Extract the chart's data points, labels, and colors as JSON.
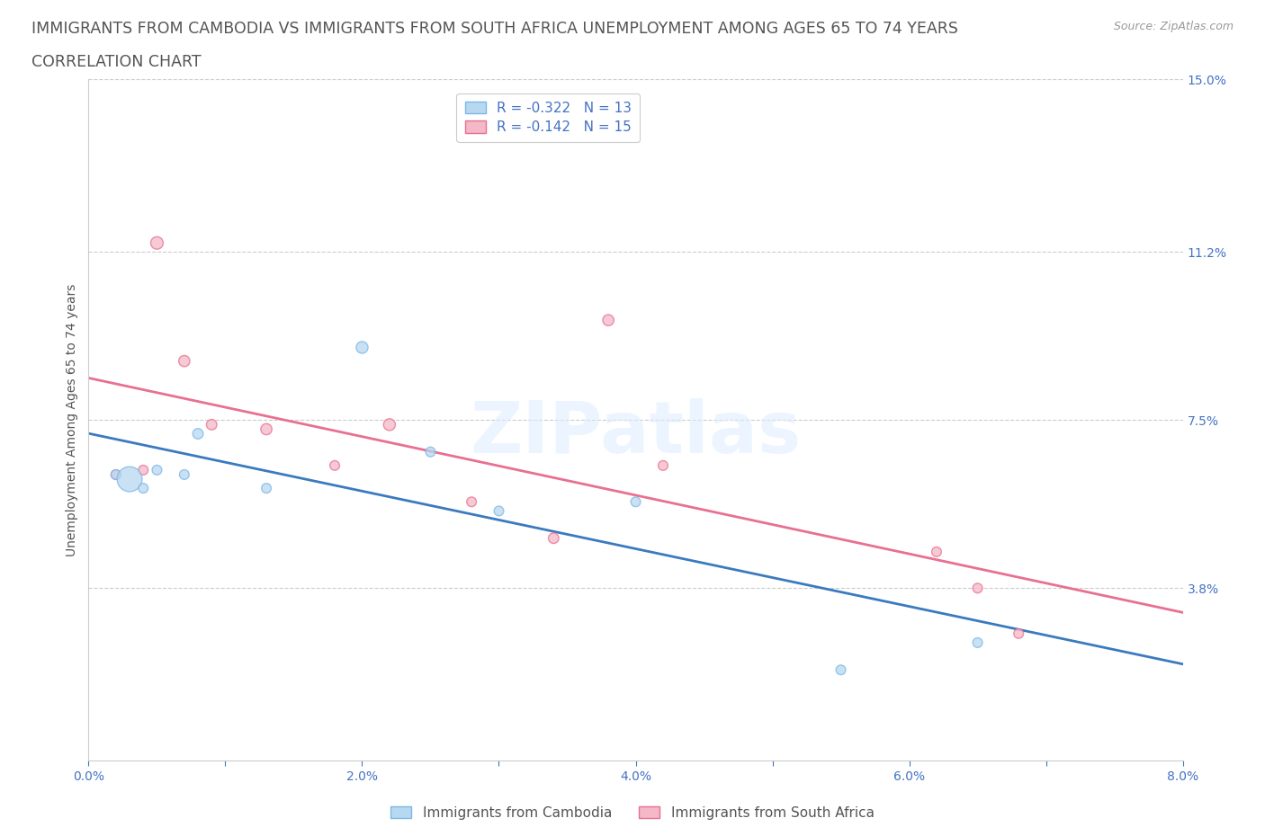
{
  "title_line1": "IMMIGRANTS FROM CAMBODIA VS IMMIGRANTS FROM SOUTH AFRICA UNEMPLOYMENT AMONG AGES 65 TO 74 YEARS",
  "title_line2": "CORRELATION CHART",
  "source": "Source: ZipAtlas.com",
  "ylabel": "Unemployment Among Ages 65 to 74 years",
  "xlim": [
    0.0,
    0.08
  ],
  "ylim": [
    0.0,
    0.15
  ],
  "xticks": [
    0.0,
    0.01,
    0.02,
    0.03,
    0.04,
    0.05,
    0.06,
    0.07,
    0.08
  ],
  "xticklabels": [
    "0.0%",
    "",
    "2.0%",
    "",
    "4.0%",
    "",
    "6.0%",
    "",
    "8.0%"
  ],
  "ytick_labels_right": [
    "15.0%",
    "11.2%",
    "7.5%",
    "3.8%"
  ],
  "ytick_values_right": [
    0.15,
    0.112,
    0.075,
    0.038
  ],
  "grid_yvals": [
    0.15,
    0.112,
    0.075,
    0.038
  ],
  "grid_color": "#cccccc",
  "background_color": "#ffffff",
  "watermark": "ZIPatlas",
  "cambodia_color": "#7ab8e8",
  "cambodia_color_fill": "#b8d8f0",
  "south_africa_color_edge": "#e87090",
  "south_africa_color_fill": "#f4b8c8",
  "cambodia_R": -0.322,
  "cambodia_N": 13,
  "south_africa_R": -0.142,
  "south_africa_N": 15,
  "legend_label_cambodia": "Immigrants from Cambodia",
  "legend_label_south_africa": "Immigrants from South Africa",
  "trend_color_cambodia": "#3a7abf",
  "trend_color_south_africa": "#e87090",
  "cambodia_x": [
    0.002,
    0.003,
    0.004,
    0.005,
    0.007,
    0.008,
    0.013,
    0.02,
    0.025,
    0.03,
    0.04,
    0.055,
    0.065
  ],
  "cambodia_y": [
    0.063,
    0.062,
    0.06,
    0.064,
    0.063,
    0.072,
    0.06,
    0.091,
    0.068,
    0.055,
    0.057,
    0.02,
    0.026
  ],
  "cambodia_sizes": [
    60,
    400,
    60,
    60,
    60,
    70,
    60,
    90,
    60,
    60,
    60,
    60,
    60
  ],
  "south_africa_x": [
    0.002,
    0.004,
    0.005,
    0.007,
    0.009,
    0.013,
    0.018,
    0.022,
    0.028,
    0.034,
    0.038,
    0.042,
    0.062,
    0.065,
    0.068
  ],
  "south_africa_y": [
    0.063,
    0.064,
    0.114,
    0.088,
    0.074,
    0.073,
    0.065,
    0.074,
    0.057,
    0.049,
    0.097,
    0.065,
    0.046,
    0.038,
    0.028
  ],
  "south_africa_sizes": [
    60,
    60,
    100,
    80,
    70,
    80,
    60,
    90,
    60,
    70,
    80,
    60,
    60,
    60,
    60
  ],
  "title_color": "#555555",
  "title_fontsize": 12.5,
  "axis_label_color": "#4472c4",
  "tick_color": "#4472c4"
}
